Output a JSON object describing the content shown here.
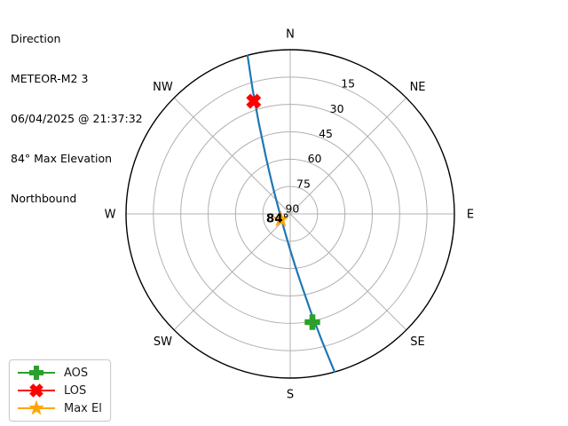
{
  "header": {
    "title": "Direction",
    "satellite": "METEOR-M2 3",
    "timestamp": "06/04/2025 @ 21:37:32",
    "max_elevation": "84° Max Elevation",
    "heading": "Northbound"
  },
  "chart_data": {
    "type": "line",
    "projection": "polar-azimuth-elevation",
    "title": "Direction",
    "subtitle": "METEOR-M2 3 pass, 06/04/2025 @ 21:37:32, 84° max elevation, northbound",
    "compass_points": [
      {
        "label": "N",
        "azimuth_deg": 0
      },
      {
        "label": "NE",
        "azimuth_deg": 45
      },
      {
        "label": "E",
        "azimuth_deg": 90
      },
      {
        "label": "SE",
        "azimuth_deg": 135
      },
      {
        "label": "S",
        "azimuth_deg": 180
      },
      {
        "label": "SW",
        "azimuth_deg": 225
      },
      {
        "label": "W",
        "azimuth_deg": 270
      },
      {
        "label": "NW",
        "azimuth_deg": 315
      }
    ],
    "elevation_rings_deg": [
      15,
      30,
      45,
      60,
      75,
      90
    ],
    "radial_axis": {
      "edge_elevation_deg": 0,
      "center_elevation_deg": 90,
      "grid": true
    },
    "track": {
      "name": "pass-track",
      "color": "#1f77b4",
      "points_az_el": [
        [
          164.3,
          0.1
        ],
        [
          165.9,
          17.5
        ],
        [
          168.1,
          35.0
        ],
        [
          171.5,
          52.5
        ],
        [
          174.5,
          61.2
        ],
        [
          179.7,
          69.9
        ],
        [
          191.9,
          78.2
        ],
        [
          239.0,
          84.3
        ],
        [
          308.8,
          80.8
        ],
        [
          326.9,
          72.7
        ],
        [
          333.7,
          64.0
        ],
        [
          337.2,
          55.1
        ],
        [
          341.0,
          37.0
        ],
        [
          343.2,
          18.8
        ],
        [
          344.9,
          0.3
        ]
      ]
    },
    "markers": [
      {
        "id": "aos",
        "label": "AOS",
        "shape": "plus",
        "color": "#2ca02c",
        "azimuth_deg": 168.4,
        "elevation_deg": 29.4
      },
      {
        "id": "los",
        "label": "LOS",
        "shape": "x",
        "color": "#ff0000",
        "azimuth_deg": 342.0,
        "elevation_deg": 25.1
      },
      {
        "id": "maxel",
        "label": "Max El",
        "shape": "star",
        "color": "#ffa500",
        "azimuth_deg": 239.0,
        "elevation_deg": 84.0
      }
    ],
    "annotation": {
      "text": "84°",
      "azimuth_deg": 239.0,
      "elevation_deg": 84.0
    },
    "legend": {
      "position": "lower-left",
      "entries": [
        {
          "id": "aos",
          "label": "AOS",
          "shape": "plus",
          "color": "#2ca02c"
        },
        {
          "id": "los",
          "label": "LOS",
          "shape": "x",
          "color": "#ff0000"
        },
        {
          "id": "maxel",
          "label": "Max El",
          "shape": "star",
          "color": "#ffa500"
        }
      ]
    },
    "colors": {
      "track": "#1f77b4",
      "aos": "#2ca02c",
      "los": "#ff0000",
      "max_el": "#ffa500",
      "grid": "#b0b0b0",
      "outline": "#000000",
      "text": "#000000"
    }
  }
}
